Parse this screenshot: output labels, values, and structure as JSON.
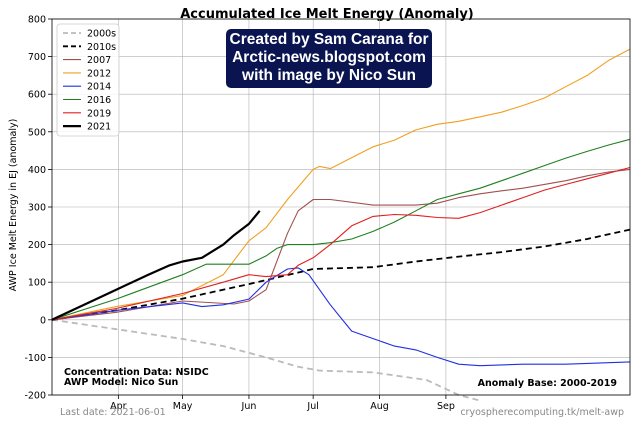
{
  "chart_data": {
    "type": "line",
    "title": "Accumulated Ice Melt Energy (Anomaly)",
    "xlabel": "",
    "ylabel": "AWP Ice Melt Energy in EJ (anomaly)",
    "xlim": [
      0,
      270
    ],
    "ylim": [
      -200,
      800
    ],
    "xticks": [
      {
        "label": "Apr",
        "x": 31
      },
      {
        "label": "May",
        "x": 61
      },
      {
        "label": "Jun",
        "x": 92
      },
      {
        "label": "Jul",
        "x": 122
      },
      {
        "label": "Aug",
        "x": 153
      },
      {
        "label": "Sep",
        "x": 184
      }
    ],
    "yticks": [
      -200,
      -100,
      0,
      100,
      200,
      300,
      400,
      500,
      600,
      700,
      800
    ],
    "grid": true,
    "legend": "top-left",
    "series": [
      {
        "name": "2000s",
        "color": "#bbbbbb",
        "dash": "dashed",
        "width": 1.8,
        "x": [
          0,
          30,
          60,
          80,
          100,
          115,
          125,
          150,
          175,
          190,
          200
        ],
        "y": [
          0,
          -25,
          -50,
          -70,
          -100,
          -125,
          -135,
          -140,
          -160,
          -200,
          -215
        ]
      },
      {
        "name": "2010s",
        "color": "#000000",
        "dash": "dashed",
        "width": 1.8,
        "x": [
          0,
          30,
          60,
          92,
          122,
          150,
          170,
          190,
          210,
          230,
          250,
          270
        ],
        "y": [
          0,
          25,
          55,
          95,
          135,
          140,
          155,
          168,
          180,
          195,
          215,
          240
        ]
      },
      {
        "name": "2007",
        "color": "#a05050",
        "dash": "solid",
        "width": 1.1,
        "x": [
          0,
          30,
          61,
          85,
          92,
          100,
          110,
          115,
          122,
          130,
          150,
          160,
          170,
          180,
          190,
          200,
          210,
          220,
          230,
          240,
          250,
          260,
          270
        ],
        "y": [
          0,
          20,
          50,
          42,
          50,
          80,
          230,
          290,
          320,
          320,
          305,
          305,
          305,
          310,
          325,
          335,
          343,
          350,
          360,
          370,
          383,
          393,
          400
        ]
      },
      {
        "name": "2012",
        "color": "#f0a020",
        "dash": "solid",
        "width": 1.1,
        "x": [
          0,
          30,
          61,
          80,
          92,
          100,
          110,
          122,
          125,
          130,
          150,
          160,
          170,
          180,
          190,
          200,
          210,
          220,
          230,
          240,
          250,
          260,
          270
        ],
        "y": [
          0,
          35,
          65,
          120,
          210,
          245,
          320,
          400,
          408,
          402,
          460,
          478,
          505,
          520,
          528,
          540,
          552,
          570,
          590,
          620,
          650,
          690,
          720
        ]
      },
      {
        "name": "2014",
        "color": "#2030e0",
        "dash": "solid",
        "width": 1.1,
        "x": [
          0,
          30,
          61,
          70,
          80,
          92,
          100,
          110,
          115,
          120,
          130,
          140,
          150,
          160,
          170,
          180,
          190,
          200,
          210,
          220,
          230,
          240,
          250,
          260,
          270
        ],
        "y": [
          0,
          25,
          45,
          35,
          40,
          55,
          100,
          135,
          138,
          120,
          40,
          -30,
          -50,
          -70,
          -80,
          -100,
          -118,
          -122,
          -120,
          -118,
          -118,
          -118,
          -116,
          -114,
          -112
        ]
      },
      {
        "name": "2016",
        "color": "#208020",
        "dash": "solid",
        "width": 1.1,
        "x": [
          0,
          30,
          61,
          72,
          92,
          100,
          105,
          110,
          122,
          130,
          140,
          150,
          160,
          170,
          180,
          190,
          200,
          210,
          220,
          230,
          240,
          250,
          260,
          270
        ],
        "y": [
          0,
          55,
          120,
          148,
          148,
          170,
          190,
          200,
          200,
          205,
          215,
          235,
          260,
          290,
          320,
          335,
          350,
          370,
          390,
          410,
          430,
          448,
          465,
          480
        ]
      },
      {
        "name": "2019",
        "color": "#e02020",
        "dash": "solid",
        "width": 1.1,
        "x": [
          0,
          30,
          61,
          80,
          92,
          100,
          110,
          115,
          122,
          130,
          140,
          150,
          160,
          170,
          180,
          190,
          200,
          210,
          220,
          230,
          240,
          250,
          260,
          270
        ],
        "y": [
          0,
          30,
          70,
          100,
          120,
          115,
          120,
          145,
          165,
          200,
          250,
          275,
          280,
          278,
          272,
          270,
          285,
          305,
          325,
          345,
          360,
          375,
          390,
          405
        ]
      },
      {
        "name": "2021",
        "color": "#000000",
        "dash": "solid",
        "width": 2.2,
        "x": [
          0,
          15,
          30,
          45,
          55,
          61,
          70,
          80,
          85,
          92,
          97
        ],
        "y": [
          0,
          40,
          80,
          120,
          145,
          155,
          165,
          200,
          225,
          255,
          290
        ]
      }
    ],
    "annotations": {
      "left_line1": "Concentration Data: NSIDC",
      "left_line2": "AWP Model: Nico Sun",
      "right": "Anomaly Base: 2000-2019",
      "footer_left": "Last date: 2021-06-01",
      "footer_right": "cryospherecomputing.tk/melt-awp"
    }
  },
  "banner": {
    "line1": "Created by Sam Carana for",
    "line2": "Arctic-news.blogspot.com",
    "line3": "with image by Nico Sun"
  }
}
